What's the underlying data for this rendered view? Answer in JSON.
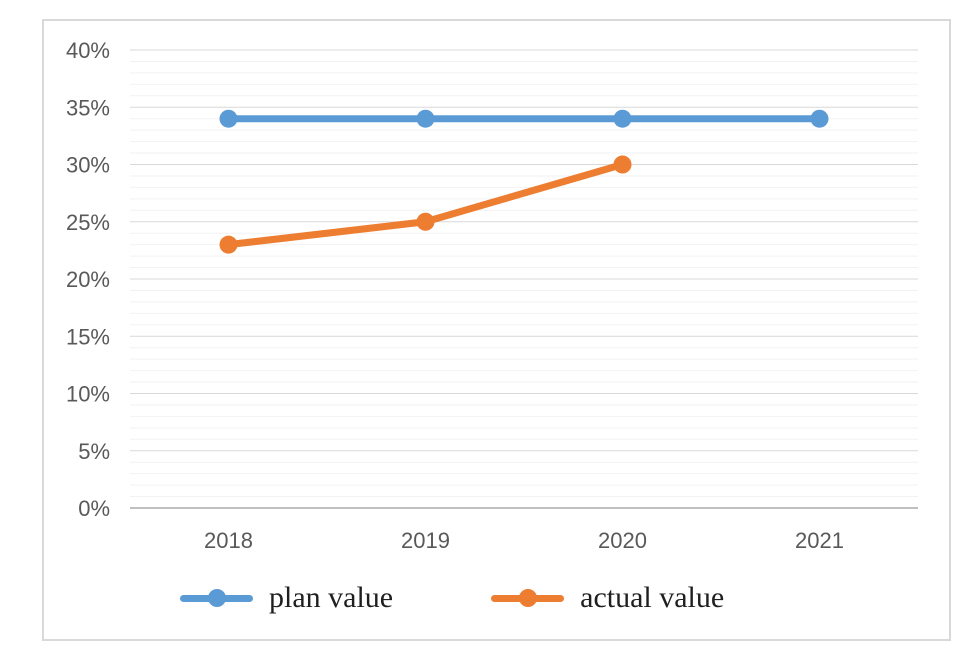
{
  "chart_data": {
    "type": "line",
    "title": "",
    "xlabel": "",
    "ylabel": "",
    "categories": [
      "2018",
      "2019",
      "2020",
      "2021"
    ],
    "series": [
      {
        "name": "plan value",
        "color": "#5B9BD5",
        "values": [
          34,
          34,
          34,
          34
        ]
      },
      {
        "name": "actual value",
        "color": "#ED7D31",
        "values": [
          23,
          25,
          30,
          null
        ]
      }
    ],
    "ylim": [
      0,
      40
    ],
    "y_tick_step": 5,
    "minor_grid_step": 1,
    "y_tick_labels": [
      "0%",
      "5%",
      "10%",
      "15%",
      "20%",
      "25%",
      "30%",
      "35%",
      "40%"
    ],
    "grid": true,
    "legend_position": "bottom",
    "style": {
      "background": "#FFFFFF",
      "frame_border": "#D9D9D9",
      "gridline_major": "#D9D9D9",
      "gridline_minor": "#F2F2F2",
      "axis_line": "#BFBFBF",
      "tick_label_color": "#595959",
      "legend_text_color": "#1F1F1F"
    }
  }
}
